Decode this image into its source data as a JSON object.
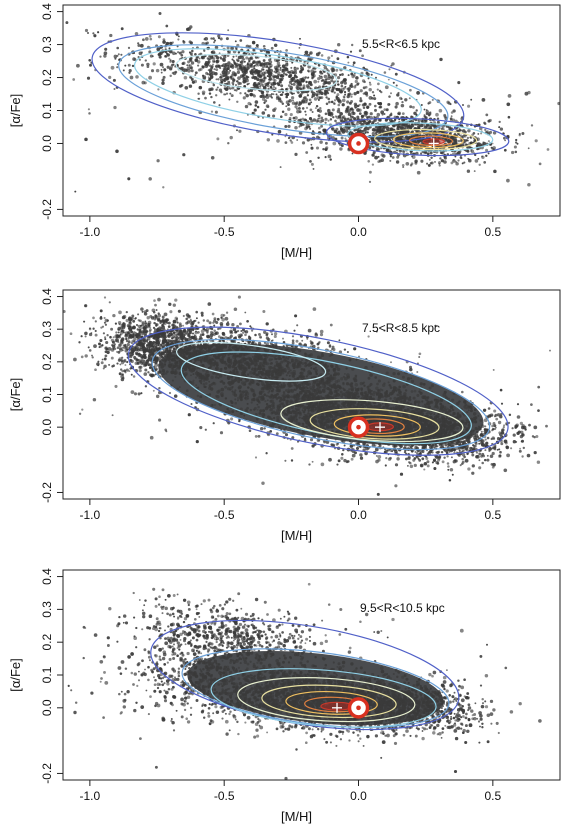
{
  "chart_data": [
    {
      "type": "scatter",
      "annotation": "5.5<R<6.5 kpc",
      "xlabel": "[M/H]",
      "ylabel": "[α/Fe]",
      "xlim": [
        -1.1,
        0.75
      ],
      "ylim": [
        -0.22,
        0.42
      ],
      "xticks": [
        -1.0,
        -0.5,
        0.0,
        0.5
      ],
      "xtick_labels": [
        "-1.0",
        "-0.5",
        "0.0",
        "0.5"
      ],
      "yticks": [
        0.4,
        0.3,
        0.2,
        0.1,
        0.0,
        -0.2
      ],
      "ytick_labels": [
        "0.4",
        "0.3",
        "0.2",
        "0.1",
        "0.0",
        "-0.2"
      ],
      "density": "two overdensities: thick-disc clump near [M/H]=-0.4,[α/Fe]=0.22 and thin-disc clump near [M/H]=0.25,[α/Fe]=0.01",
      "sun_marker": [
        0.0,
        0.0
      ],
      "density_peak": [
        0.28,
        0.0
      ],
      "grid": false
    },
    {
      "type": "scatter",
      "annotation": "7.5<R<8.5 kpc",
      "xlabel": "[M/H]",
      "ylabel": "[α/Fe]",
      "xlim": [
        -1.1,
        0.75
      ],
      "ylim": [
        -0.22,
        0.42
      ],
      "xticks": [
        -1.0,
        -0.5,
        0.0,
        0.5
      ],
      "xtick_labels": [
        "-1.0",
        "-0.5",
        "0.0",
        "0.5"
      ],
      "yticks": [
        0.4,
        0.3,
        0.2,
        0.1,
        0.0,
        -0.2
      ],
      "ytick_labels": [
        "0.4",
        "0.3",
        "0.2",
        "0.1",
        "0.0",
        "-0.2"
      ],
      "density": "continuous sequence from [M/H]=-0.8,[α/Fe]=0.25 to [M/H]=0.45,[α/Fe]=-0.03; densest near solar values",
      "sun_marker": [
        0.0,
        0.0
      ],
      "density_peak": [
        0.08,
        0.0
      ],
      "grid": false
    },
    {
      "type": "scatter",
      "annotation": "9.5<R<10.5 kpc",
      "xlabel": "[M/H]",
      "ylabel": "[α/Fe]",
      "xlim": [
        -1.1,
        0.75
      ],
      "ylim": [
        -0.22,
        0.42
      ],
      "xticks": [
        -1.0,
        -0.5,
        0.0,
        0.5
      ],
      "xtick_labels": [
        "-1.0",
        "-0.5",
        "0.0",
        "0.5"
      ],
      "yticks": [
        0.4,
        0.3,
        0.2,
        0.1,
        0.0,
        -0.2
      ],
      "ytick_labels": [
        "0.4",
        "0.3",
        "0.2",
        "0.1",
        "0.0",
        "-0.2"
      ],
      "density": "dominant low-α clump centred near [M/H]=-0.12,[α/Fe]=0.02, sparse high-α tail near [M/H]=-0.5,[α/Fe]=0.22",
      "sun_marker": [
        0.0,
        0.0
      ],
      "density_peak": [
        -0.08,
        0.0
      ],
      "grid": false
    }
  ]
}
